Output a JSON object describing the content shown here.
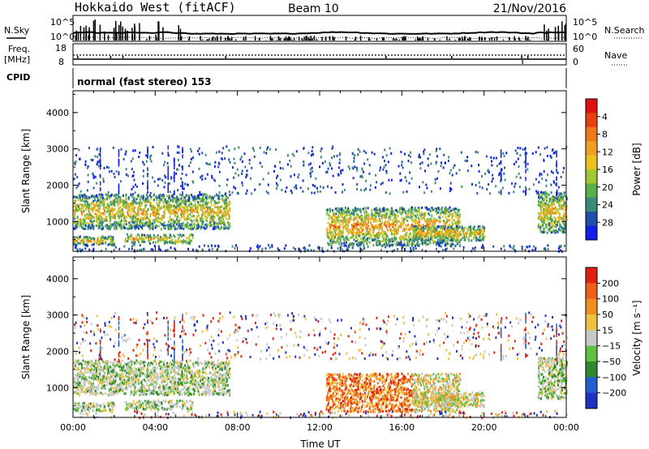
{
  "header": {
    "station": "Hokkaido West (fitACF)",
    "beam": "Beam 10",
    "date": "21/Nov/2016"
  },
  "top_panels": {
    "nsky_label": "N.Sky",
    "nsky_ticks": [
      "10^5",
      "10^0"
    ],
    "nsearch_label": "N.Search",
    "nsearch_ticks": [
      "10^5",
      "10^0"
    ],
    "freq_label_1": "Freq.",
    "freq_label_2": "[MHz]",
    "freq_ticks": [
      "18",
      "8"
    ],
    "nave_label": "Nave",
    "nave_ticks": [
      "60",
      "0"
    ],
    "cpid_label": "CPID",
    "cpid_text": "normal (fast stereo) 153"
  },
  "chart_data": [
    {
      "type": "heatmap",
      "xlabel": "Time UT",
      "ylabel": "Slant Range [km]",
      "x_ticks": [
        "00:00",
        "04:00",
        "08:00",
        "12:00",
        "16:00",
        "20:00",
        "00:00"
      ],
      "xlim": [
        0,
        24
      ],
      "ylim": [
        180,
        4600
      ],
      "y_ticks": [
        1000,
        2000,
        3000,
        4000
      ],
      "colorbar": {
        "label": "Power [dB]",
        "ticks": [
          "4",
          "8",
          "12",
          "16",
          "20",
          "24",
          "28"
        ],
        "colors": [
          "#1020e8",
          "#2050a8",
          "#3a8a78",
          "#58b048",
          "#a0c830",
          "#f0c020",
          "#f0a020",
          "#f07818",
          "#e84010",
          "#e01010"
        ]
      }
    },
    {
      "type": "heatmap",
      "xlabel": "Time UT",
      "ylabel": "Slant Range [km]",
      "x_ticks": [
        "00:00",
        "04:00",
        "08:00",
        "12:00",
        "16:00",
        "20:00",
        "00:00"
      ],
      "xlim": [
        0,
        24
      ],
      "ylim": [
        180,
        4600
      ],
      "y_ticks": [
        1000,
        2000,
        3000,
        4000
      ],
      "colorbar": {
        "label": "Velocity [m s⁻¹]",
        "ticks": [
          "200",
          "100",
          "50",
          "15",
          "−15",
          "−50",
          "−100",
          "−200"
        ],
        "colors": [
          "#2030c0",
          "#2060d0",
          "#308830",
          "#60c040",
          "#c8c8c8",
          "#f0c040",
          "#f09020",
          "#f06018",
          "#e02010"
        ]
      }
    }
  ]
}
